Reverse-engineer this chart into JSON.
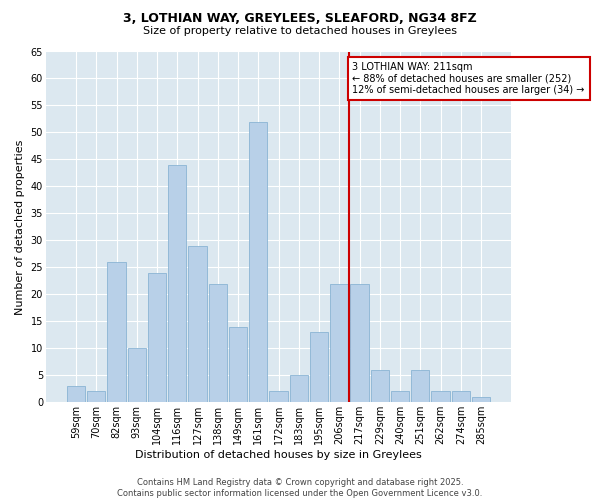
{
  "title": "3, LOTHIAN WAY, GREYLEES, SLEAFORD, NG34 8FZ",
  "subtitle": "Size of property relative to detached houses in Greylees",
  "xlabel": "Distribution of detached houses by size in Greylees",
  "ylabel": "Number of detached properties",
  "footer_line1": "Contains HM Land Registry data © Crown copyright and database right 2025.",
  "footer_line2": "Contains public sector information licensed under the Open Government Licence v3.0.",
  "categories": [
    "59sqm",
    "70sqm",
    "82sqm",
    "93sqm",
    "104sqm",
    "116sqm",
    "127sqm",
    "138sqm",
    "149sqm",
    "161sqm",
    "172sqm",
    "183sqm",
    "195sqm",
    "206sqm",
    "217sqm",
    "229sqm",
    "240sqm",
    "251sqm",
    "262sqm",
    "274sqm",
    "285sqm"
  ],
  "values": [
    3,
    2,
    26,
    10,
    24,
    44,
    29,
    22,
    14,
    52,
    2,
    5,
    13,
    22,
    22,
    6,
    2,
    6,
    2,
    2,
    1
  ],
  "bar_color": "#b8d0e8",
  "bar_edge_color": "#8ab4d4",
  "fig_bg_color": "#ffffff",
  "ax_bg_color": "#dce8f0",
  "grid_color": "#ffffff",
  "marker_line_color": "#cc0000",
  "marker_label": "3 LOTHIAN WAY: 211sqm",
  "annotation_pct_smaller": "88% of detached houses are smaller (252)",
  "annotation_pct_larger": "12% of semi-detached houses are larger (34)",
  "ylim": [
    0,
    65
  ],
  "yticks": [
    0,
    5,
    10,
    15,
    20,
    25,
    30,
    35,
    40,
    45,
    50,
    55,
    60,
    65
  ],
  "title_fontsize": 9,
  "subtitle_fontsize": 8,
  "tick_fontsize": 7,
  "ylabel_fontsize": 8,
  "xlabel_fontsize": 8,
  "annotation_fontsize": 7,
  "footer_fontsize": 6
}
